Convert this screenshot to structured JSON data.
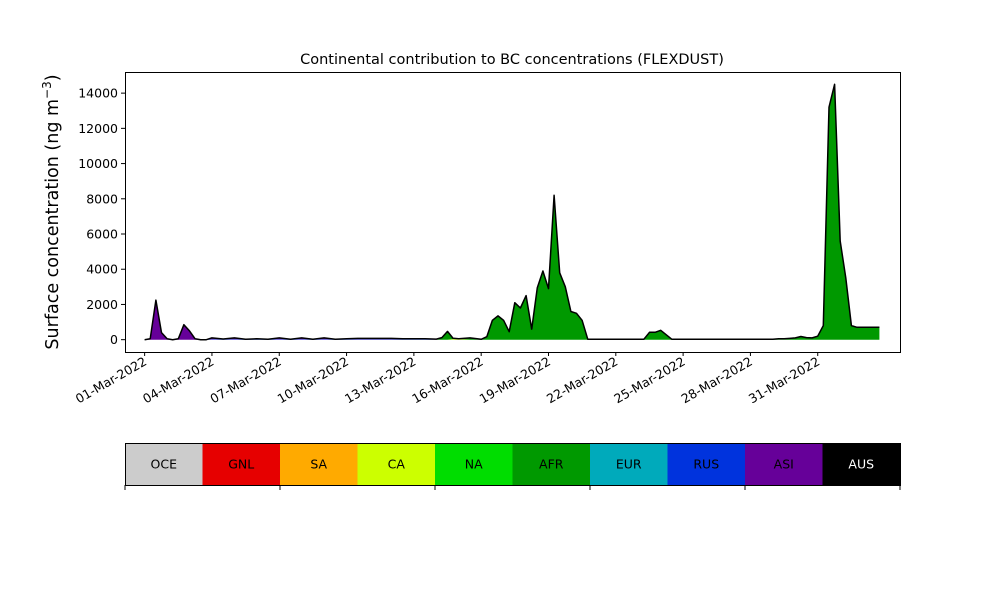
{
  "chart_data": {
    "type": "area",
    "title": "Continental contribution to BC concentrations (FLEXDUST)",
    "xlabel": "",
    "ylabel": "Surface concentration (ng m",
    "ylabel_unit_exponent": "−3",
    "ylabel_close": ")",
    "xlim": [
      "2022-02-28T03:00",
      "2022-04-03T16:00"
    ],
    "ylim": [
      -700,
      15200
    ],
    "yticks": [
      0,
      2000,
      4000,
      6000,
      8000,
      10000,
      12000,
      14000
    ],
    "ytick_labels": [
      "0",
      "2000",
      "4000",
      "6000",
      "8000",
      "10000",
      "12000",
      "14000"
    ],
    "xticks": [
      "2022-03-01",
      "2022-03-04",
      "2022-03-07",
      "2022-03-10",
      "2022-03-13",
      "2022-03-16",
      "2022-03-19",
      "2022-03-22",
      "2022-03-25",
      "2022-03-28",
      "2022-03-31"
    ],
    "xtick_labels": [
      "01-Mar-2022",
      "04-Mar-2022",
      "07-Mar-2022",
      "10-Mar-2022",
      "13-Mar-2022",
      "16-Mar-2022",
      "19-Mar-2022",
      "22-Mar-2022",
      "25-Mar-2022",
      "28-Mar-2022",
      "31-Mar-2022"
    ],
    "grid": false,
    "stack_order": [
      "OCE",
      "GNL",
      "SA",
      "CA",
      "NA",
      "AFR",
      "EUR",
      "RUS",
      "ASI",
      "AUS"
    ],
    "x": [
      "2022-03-01T00:00",
      "2022-03-01T06:00",
      "2022-03-01T12:00",
      "2022-03-01T18:00",
      "2022-03-02T00:00",
      "2022-03-02T06:00",
      "2022-03-02T12:00",
      "2022-03-02T18:00",
      "2022-03-03T00:00",
      "2022-03-03T06:00",
      "2022-03-03T12:00",
      "2022-03-03T18:00",
      "2022-03-04T00:00",
      "2022-03-04T12:00",
      "2022-03-05T00:00",
      "2022-03-05T12:00",
      "2022-03-06T00:00",
      "2022-03-06T12:00",
      "2022-03-07T00:00",
      "2022-03-07T12:00",
      "2022-03-08T00:00",
      "2022-03-08T12:00",
      "2022-03-09T00:00",
      "2022-03-09T12:00",
      "2022-03-10T00:00",
      "2022-03-10T12:00",
      "2022-03-11T00:00",
      "2022-03-11T12:00",
      "2022-03-12T00:00",
      "2022-03-12T12:00",
      "2022-03-13T00:00",
      "2022-03-13T12:00",
      "2022-03-14T00:00",
      "2022-03-14T06:00",
      "2022-03-14T12:00",
      "2022-03-14T18:00",
      "2022-03-15T00:00",
      "2022-03-15T12:00",
      "2022-03-16T00:00",
      "2022-03-16T06:00",
      "2022-03-16T12:00",
      "2022-03-16T18:00",
      "2022-03-17T00:00",
      "2022-03-17T06:00",
      "2022-03-17T12:00",
      "2022-03-17T18:00",
      "2022-03-18T00:00",
      "2022-03-18T06:00",
      "2022-03-18T12:00",
      "2022-03-18T18:00",
      "2022-03-19T00:00",
      "2022-03-19T06:00",
      "2022-03-19T12:00",
      "2022-03-19T18:00",
      "2022-03-20T00:00",
      "2022-03-20T06:00",
      "2022-03-20T12:00",
      "2022-03-20T18:00",
      "2022-03-21T00:00",
      "2022-03-21T12:00",
      "2022-03-22T00:00",
      "2022-03-22T12:00",
      "2022-03-23T00:00",
      "2022-03-23T06:00",
      "2022-03-23T12:00",
      "2022-03-23T18:00",
      "2022-03-24T00:00",
      "2022-03-24T12:00",
      "2022-03-25T00:00",
      "2022-03-25T12:00",
      "2022-03-26T00:00",
      "2022-03-26T12:00",
      "2022-03-27T00:00",
      "2022-03-27T12:00",
      "2022-03-28T00:00",
      "2022-03-28T12:00",
      "2022-03-29T00:00",
      "2022-03-29T06:00",
      "2022-03-29T12:00",
      "2022-03-29T18:00",
      "2022-03-30T00:00",
      "2022-03-30T06:00",
      "2022-03-30T12:00",
      "2022-03-30T18:00",
      "2022-03-31T00:00",
      "2022-03-31T06:00",
      "2022-03-31T12:00",
      "2022-03-31T18:00",
      "2022-04-01T00:00",
      "2022-04-01T06:00",
      "2022-04-01T12:00",
      "2022-04-01T18:00",
      "2022-04-02T00:00",
      "2022-04-02T06:00",
      "2022-04-02T12:00",
      "2022-04-02T18:00"
    ],
    "series": [
      {
        "name": "OCE",
        "color": "#cccccc",
        "values": [
          0,
          0,
          0,
          0,
          0,
          0,
          0,
          0,
          0,
          0,
          0,
          0,
          0,
          0,
          0,
          0,
          0,
          0,
          0,
          0,
          0,
          0,
          0,
          0,
          0,
          0,
          0,
          0,
          0,
          0,
          0,
          0,
          0,
          0,
          0,
          0,
          0,
          0,
          0,
          0,
          0,
          0,
          0,
          0,
          0,
          0,
          0,
          0,
          0,
          0,
          0,
          0,
          0,
          0,
          0,
          0,
          0,
          0,
          0,
          0,
          0,
          0,
          0,
          0,
          0,
          0,
          0,
          0,
          0,
          0,
          0,
          0,
          0,
          0,
          0,
          0,
          0,
          0,
          0,
          0,
          0,
          0,
          0,
          0,
          0,
          0,
          0,
          0,
          0,
          0,
          0,
          0,
          0,
          0,
          0,
          0
        ]
      },
      {
        "name": "GNL",
        "color": "#e60000",
        "values": [
          0,
          0,
          0,
          0,
          0,
          0,
          0,
          0,
          0,
          0,
          0,
          0,
          0,
          0,
          0,
          0,
          0,
          0,
          0,
          0,
          0,
          0,
          0,
          0,
          0,
          0,
          0,
          0,
          0,
          0,
          0,
          0,
          0,
          0,
          0,
          0,
          0,
          0,
          0,
          0,
          0,
          0,
          0,
          0,
          0,
          0,
          0,
          0,
          0,
          0,
          0,
          0,
          0,
          0,
          0,
          0,
          0,
          0,
          0,
          0,
          0,
          0,
          0,
          0,
          0,
          0,
          0,
          0,
          0,
          0,
          0,
          0,
          0,
          0,
          0,
          0,
          0,
          0,
          0,
          0,
          0,
          0,
          0,
          0,
          0,
          0,
          0,
          0,
          0,
          0,
          0,
          0,
          0,
          0,
          0,
          0
        ]
      },
      {
        "name": "SA",
        "color": "#ffaa00",
        "values": [
          0,
          0,
          0,
          0,
          0,
          0,
          0,
          0,
          0,
          0,
          0,
          0,
          0,
          0,
          0,
          0,
          0,
          0,
          0,
          0,
          0,
          0,
          0,
          0,
          0,
          0,
          0,
          0,
          0,
          0,
          0,
          0,
          0,
          0,
          0,
          0,
          0,
          0,
          0,
          0,
          0,
          0,
          0,
          0,
          0,
          0,
          0,
          0,
          0,
          0,
          0,
          0,
          0,
          0,
          0,
          0,
          0,
          0,
          0,
          0,
          0,
          0,
          0,
          0,
          0,
          0,
          0,
          0,
          0,
          0,
          0,
          0,
          0,
          0,
          0,
          0,
          0,
          0,
          0,
          0,
          0,
          0,
          0,
          0,
          0,
          0,
          0,
          0,
          0,
          0,
          0,
          0,
          0,
          0,
          0,
          0
        ]
      },
      {
        "name": "CA",
        "color": "#ccff00",
        "values": [
          0,
          0,
          0,
          0,
          0,
          0,
          0,
          0,
          0,
          0,
          0,
          0,
          0,
          0,
          0,
          0,
          0,
          0,
          0,
          0,
          0,
          0,
          0,
          0,
          0,
          0,
          0,
          0,
          0,
          0,
          0,
          0,
          0,
          0,
          0,
          30,
          30,
          0,
          0,
          0,
          0,
          0,
          0,
          0,
          0,
          0,
          0,
          0,
          0,
          0,
          0,
          0,
          0,
          0,
          0,
          0,
          0,
          0,
          0,
          0,
          0,
          0,
          0,
          0,
          0,
          0,
          0,
          0,
          0,
          0,
          0,
          0,
          0,
          0,
          0,
          0,
          0,
          0,
          0,
          0,
          0,
          0,
          0,
          0,
          0,
          0,
          0,
          0,
          0,
          0,
          0,
          0,
          0,
          0,
          0,
          0
        ]
      },
      {
        "name": "NA",
        "color": "#00dd00",
        "values": [
          0,
          0,
          0,
          0,
          0,
          0,
          0,
          0,
          0,
          0,
          0,
          0,
          0,
          0,
          0,
          0,
          0,
          0,
          0,
          0,
          0,
          0,
          0,
          0,
          0,
          0,
          0,
          0,
          0,
          0,
          0,
          0,
          0,
          0,
          0,
          0,
          0,
          0,
          0,
          0,
          0,
          0,
          0,
          0,
          0,
          0,
          0,
          0,
          0,
          0,
          0,
          0,
          0,
          0,
          0,
          0,
          0,
          0,
          0,
          0,
          0,
          0,
          0,
          0,
          0,
          0,
          0,
          0,
          0,
          0,
          0,
          0,
          0,
          0,
          0,
          0,
          0,
          0,
          0,
          0,
          0,
          0,
          0,
          0,
          0,
          0,
          0,
          0,
          0,
          0,
          0,
          0,
          0,
          0,
          0,
          0
        ]
      },
      {
        "name": "AFR",
        "color": "#009900",
        "values": [
          0,
          0,
          0,
          0,
          0,
          0,
          0,
          0,
          0,
          0,
          0,
          0,
          0,
          0,
          0,
          0,
          0,
          0,
          0,
          0,
          0,
          0,
          0,
          0,
          0,
          0,
          0,
          0,
          0,
          0,
          0,
          0,
          0,
          100,
          450,
          50,
          20,
          100,
          0,
          150,
          1100,
          1350,
          1100,
          450,
          2100,
          1800,
          2500,
          600,
          2950,
          3900,
          2900,
          8200,
          3800,
          3000,
          1600,
          1500,
          1100,
          20,
          20,
          20,
          20,
          20,
          20,
          20,
          420,
          420,
          530,
          20,
          20,
          20,
          20,
          20,
          20,
          20,
          20,
          20,
          20,
          50,
          50,
          70,
          100,
          180,
          120,
          100,
          200,
          800,
          13200,
          14500,
          5600,
          3500,
          800,
          700,
          700,
          700,
          700,
          700
        ]
      },
      {
        "name": "EUR",
        "color": "#00aabb",
        "values": [
          0,
          0,
          0,
          0,
          0,
          0,
          0,
          0,
          0,
          0,
          0,
          0,
          0,
          0,
          0,
          0,
          0,
          0,
          0,
          0,
          0,
          0,
          0,
          0,
          0,
          0,
          0,
          0,
          0,
          0,
          0,
          0,
          0,
          0,
          0,
          0,
          0,
          0,
          0,
          0,
          0,
          0,
          0,
          0,
          0,
          0,
          0,
          0,
          0,
          0,
          0,
          0,
          0,
          0,
          0,
          0,
          0,
          0,
          0,
          0,
          0,
          0,
          0,
          0,
          0,
          0,
          0,
          0,
          0,
          0,
          0,
          0,
          0,
          0,
          0,
          0,
          0,
          0,
          0,
          0,
          0,
          0,
          0,
          0,
          0,
          0,
          0,
          0,
          0,
          0,
          0,
          0,
          0,
          0,
          0,
          0
        ]
      },
      {
        "name": "RUS",
        "color": "#0033dd",
        "values": [
          0,
          0,
          0,
          0,
          0,
          0,
          0,
          0,
          0,
          0,
          0,
          0,
          20,
          20,
          20,
          20,
          20,
          20,
          20,
          20,
          20,
          20,
          20,
          20,
          20,
          20,
          20,
          20,
          20,
          20,
          20,
          20,
          0,
          0,
          0,
          0,
          0,
          0,
          0,
          0,
          0,
          0,
          0,
          0,
          0,
          0,
          0,
          0,
          0,
          0,
          0,
          0,
          0,
          0,
          0,
          0,
          0,
          0,
          0,
          0,
          0,
          0,
          0,
          0,
          0,
          0,
          0,
          0,
          0,
          0,
          0,
          0,
          0,
          0,
          0,
          0,
          0,
          0,
          0,
          0,
          0,
          0,
          0,
          0,
          0,
          0,
          0,
          0,
          0,
          0,
          0,
          0,
          0,
          0,
          0,
          0
        ]
      },
      {
        "name": "ASI",
        "color": "#660099",
        "values": [
          0,
          50,
          2250,
          400,
          50,
          0,
          50,
          850,
          500,
          50,
          0,
          0,
          80,
          20,
          80,
          0,
          30,
          0,
          80,
          0,
          80,
          0,
          80,
          0,
          30,
          50,
          50,
          50,
          50,
          30,
          30,
          30,
          30,
          20,
          20,
          0,
          0,
          0,
          20,
          20,
          0,
          0,
          0,
          0,
          0,
          0,
          0,
          0,
          0,
          0,
          0,
          0,
          0,
          0,
          0,
          0,
          0,
          0,
          0,
          0,
          0,
          0,
          0,
          0,
          0,
          0,
          0,
          0,
          0,
          0,
          0,
          0,
          0,
          0,
          0,
          0,
          0,
          0,
          0,
          0,
          0,
          0,
          0,
          0,
          0,
          0,
          0,
          0,
          0,
          0,
          0,
          0,
          0,
          0,
          0,
          0
        ]
      },
      {
        "name": "AUS",
        "color": "#000000",
        "values": [
          0,
          0,
          0,
          0,
          0,
          0,
          0,
          0,
          0,
          0,
          0,
          0,
          0,
          0,
          0,
          0,
          0,
          0,
          0,
          0,
          0,
          0,
          0,
          0,
          0,
          0,
          0,
          0,
          0,
          0,
          0,
          0,
          0,
          0,
          0,
          0,
          0,
          0,
          0,
          0,
          0,
          0,
          0,
          0,
          0,
          0,
          0,
          0,
          0,
          0,
          0,
          0,
          0,
          0,
          0,
          0,
          0,
          0,
          0,
          0,
          0,
          0,
          0,
          0,
          0,
          0,
          0,
          0,
          0,
          0,
          0,
          0,
          0,
          0,
          0,
          0,
          0,
          0,
          0,
          0,
          0,
          0,
          0,
          0,
          0,
          0,
          0,
          0,
          0,
          0,
          0,
          0,
          0,
          0,
          0,
          0
        ]
      }
    ]
  },
  "colorbar": {
    "labels": [
      "OCE",
      "GNL",
      "SA",
      "CA",
      "NA",
      "AFR",
      "EUR",
      "RUS",
      "ASI",
      "AUS"
    ],
    "colors": [
      "#cccccc",
      "#e60000",
      "#ffaa00",
      "#ccff00",
      "#00dd00",
      "#009900",
      "#00aabb",
      "#0033dd",
      "#660099",
      "#000000"
    ],
    "label_colors": [
      "#000000",
      "#000000",
      "#000000",
      "#000000",
      "#000000",
      "#000000",
      "#000000",
      "#000000",
      "#000000",
      "#ffffff"
    ]
  }
}
